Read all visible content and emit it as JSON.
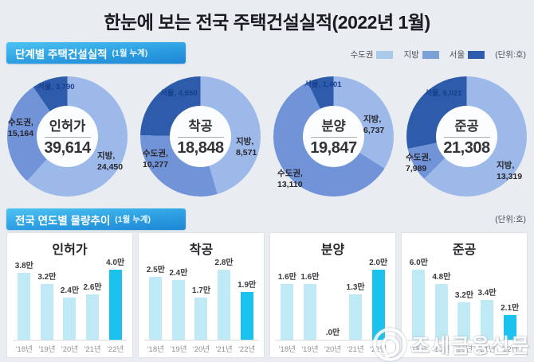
{
  "title": "한눈에 보는 전국 주택건설실적(2022년 1월)",
  "section1": {
    "title": "단계별 주택건설실적",
    "subtitle": "(1월 누계)"
  },
  "section2": {
    "title": "전국 연도별 물량추이",
    "subtitle": "(1월 누계)",
    "unit": "(단위:호)"
  },
  "legend": {
    "items": [
      {
        "label": "수도권",
        "color": "#a9c9e8"
      },
      {
        "label": "지방",
        "color": "#7ba2d6"
      },
      {
        "label": "서울",
        "color": "#2e5cab"
      }
    ],
    "unit": "(단위:호)"
  },
  "colors": {
    "background": "#e9edf2",
    "donut_slices": [
      "#9db9ea",
      "#7193d8",
      "#2e5cab"
    ],
    "bar_light": "#bfe9f4",
    "bar_highlight": "#1cc2ee",
    "header_gradient": [
      "#4cc3f2",
      "#1e86d5"
    ]
  },
  "chart_data": {
    "donut_charts": [
      {
        "type": "donut",
        "name": "인허가",
        "total": 39614,
        "total_display": "39,614",
        "slices": [
          {
            "label": "지방",
            "value": 24450,
            "display": "24,450"
          },
          {
            "label": "수도권",
            "value": 15164,
            "display": "15,164"
          },
          {
            "label": "서울",
            "value": 3790,
            "display": "3,790"
          }
        ]
      },
      {
        "type": "donut",
        "name": "착공",
        "total": 18848,
        "total_display": "18,848",
        "slices": [
          {
            "label": "지방",
            "value": 8571,
            "display": "8,571"
          },
          {
            "label": "수도권",
            "value": 10277,
            "display": "10,277"
          },
          {
            "label": "서울",
            "value": 4650,
            "display": "4,650"
          }
        ]
      },
      {
        "type": "donut",
        "name": "분양",
        "total": 19847,
        "total_display": "19,847",
        "slices": [
          {
            "label": "지방",
            "value": 6737,
            "display": "6,737"
          },
          {
            "label": "수도권",
            "value": 13110,
            "display": "13,110"
          },
          {
            "label": "서울",
            "value": 1401,
            "display": "1,401"
          }
        ]
      },
      {
        "type": "donut",
        "name": "준공",
        "total": 21308,
        "total_display": "21,308",
        "slices": [
          {
            "label": "지방",
            "value": 13319,
            "display": "13,319"
          },
          {
            "label": "수도권",
            "value": 7989,
            "display": "7,989"
          },
          {
            "label": "서울",
            "value": 6021,
            "display": "6,021"
          }
        ]
      }
    ],
    "bar_charts": [
      {
        "type": "bar",
        "title": "인허가",
        "categories": [
          "'18년",
          "'19년",
          "'20년",
          "'21년",
          "'22년"
        ],
        "values": [
          3.8,
          3.2,
          2.4,
          2.6,
          4.0
        ],
        "labels": [
          "3.8만",
          "3.2만",
          "2.4만",
          "2.6만",
          "4.0만"
        ],
        "highlight_index": 4
      },
      {
        "type": "bar",
        "title": "착공",
        "categories": [
          "'18년",
          "'19년",
          "'20년",
          "'21년",
          "'22년"
        ],
        "values": [
          2.5,
          2.4,
          1.7,
          2.8,
          1.9
        ],
        "labels": [
          "2.5만",
          "2.4만",
          "1.7만",
          "2.8만",
          "1.9만"
        ],
        "highlight_index": 4
      },
      {
        "type": "bar",
        "title": "분양",
        "categories": [
          "'18년",
          "'19년",
          "'20년",
          "'21년",
          "'22년"
        ],
        "values": [
          1.6,
          1.6,
          0,
          1.3,
          2.0
        ],
        "labels": [
          "1.6만",
          "1.6만",
          ".0만",
          "1.3만",
          "2.0만"
        ],
        "highlight_index": 4
      },
      {
        "type": "bar",
        "title": "준공",
        "categories": [
          "'18년",
          "'19년",
          "'20년",
          "'21년",
          "'22년"
        ],
        "values": [
          6.0,
          4.8,
          3.2,
          3.4,
          2.1
        ],
        "labels": [
          "6.0만",
          "4.8만",
          "3.2만",
          "3.4만",
          "2.1만"
        ],
        "highlight_index": 4
      }
    ]
  },
  "watermark": {
    "text": "조세금융신문"
  }
}
